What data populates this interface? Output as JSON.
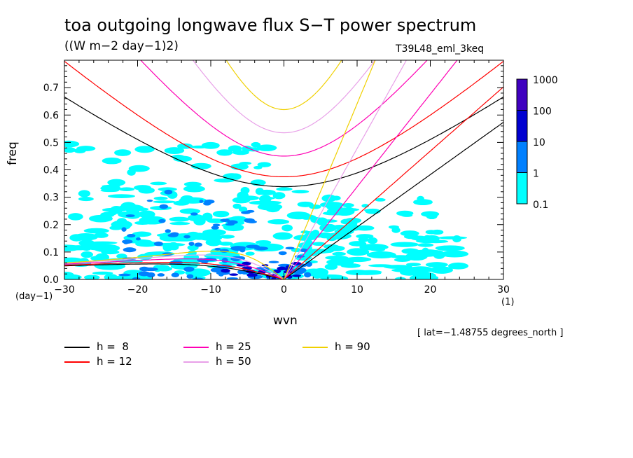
{
  "header": {
    "title": "toa outgoing longwave flux S−T power spectrum",
    "subtitle": "((W m−2 day−1)2)",
    "run_name": "T39L48_eml_3keq",
    "lat_note": "[ lat=−1.48755 degrees_north ]",
    "y_unit": "(day−1)",
    "x_unit": "(1)"
  },
  "chart_data": {
    "type": "heatmap",
    "xlabel": "wvn",
    "ylabel": "freq",
    "xlim": [
      -30,
      30
    ],
    "ylim": [
      0,
      0.8
    ],
    "x_ticks": [
      "−30",
      "−20",
      "−10",
      "0",
      "10",
      "20",
      "30"
    ],
    "x_tick_values": [
      -30,
      -20,
      -10,
      0,
      10,
      20,
      30
    ],
    "y_ticks": [
      "0.0",
      "0.1",
      "0.2",
      "0.3",
      "0.4",
      "0.5",
      "0.6",
      "0.7"
    ],
    "y_tick_values": [
      0,
      0.1,
      0.2,
      0.3,
      0.4,
      0.5,
      0.6,
      0.7
    ],
    "colorbar": {
      "levels": [
        "0.1",
        "1",
        "10",
        "100",
        "1000"
      ],
      "colors": [
        "#00ffff",
        "#0080ff",
        "#0000d0",
        "#4000c0"
      ]
    },
    "dispersion_curves": [
      {
        "name": "h =  8",
        "h": 8,
        "color": "#000000"
      },
      {
        "name": "h = 12",
        "h": 12,
        "color": "#ff0000"
      },
      {
        "name": "h = 25",
        "h": 25,
        "color": "#ff00b4"
      },
      {
        "name": "h = 50",
        "h": 50,
        "color": "#e8a0e8"
      },
      {
        "name": "h = 90",
        "h": 90,
        "color": "#f0d000"
      }
    ]
  },
  "legend": [
    {
      "label": "h =  8",
      "color": "#000000"
    },
    {
      "label": "h = 12",
      "color": "#ff0000"
    },
    {
      "label": "h = 25",
      "color": "#ff00b4"
    },
    {
      "label": "h = 50",
      "color": "#e8a0e8"
    },
    {
      "label": "h = 90",
      "color": "#f0d000"
    }
  ]
}
